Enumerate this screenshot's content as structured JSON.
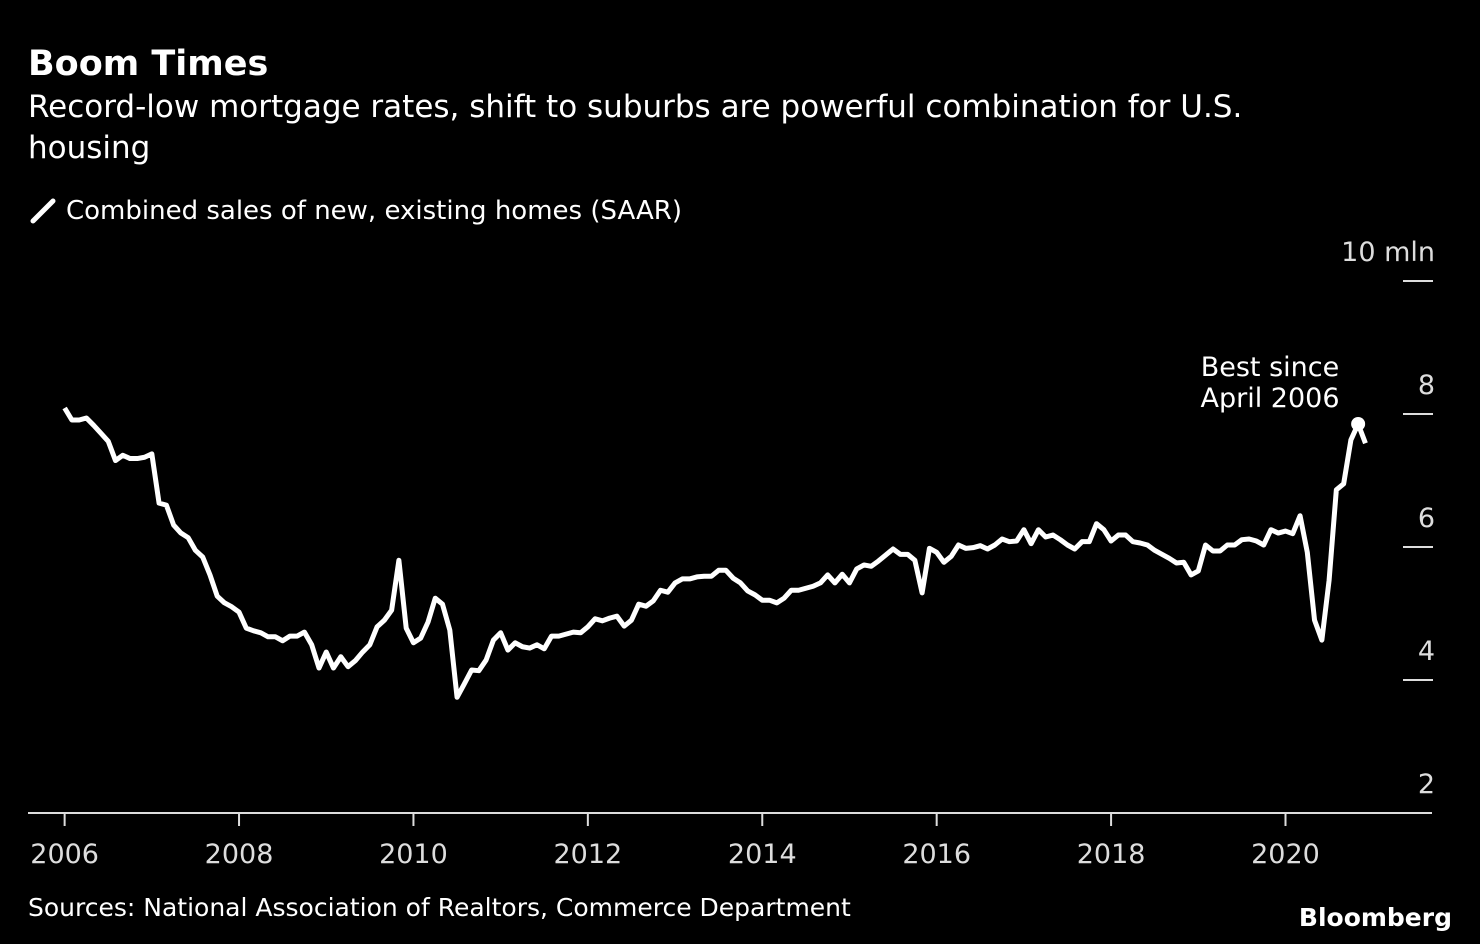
{
  "chart_data": {
    "type": "line",
    "title": "Boom Times",
    "subtitle": [
      "Record-low mortgage rates, shift to suburbs are powerful combination for U.S.",
      "housing"
    ],
    "source": "Sources: National Association of Realtors, Commerce Department",
    "brand": "Bloomberg",
    "annotation": [
      "Best since",
      "April 2006"
    ],
    "legend": true,
    "x": [
      2006,
      2006.083,
      2006.167,
      2006.25,
      2006.333,
      2006.417,
      2006.5,
      2006.583,
      2006.667,
      2006.75,
      2006.833,
      2006.917,
      2007,
      2007.083,
      2007.167,
      2007.25,
      2007.333,
      2007.417,
      2007.5,
      2007.583,
      2007.667,
      2007.75,
      2007.833,
      2007.917,
      2008,
      2008.083,
      2008.167,
      2008.25,
      2008.333,
      2008.417,
      2008.5,
      2008.583,
      2008.667,
      2008.75,
      2008.833,
      2008.917,
      2009,
      2009.083,
      2009.167,
      2009.25,
      2009.333,
      2009.417,
      2009.5,
      2009.583,
      2009.667,
      2009.75,
      2009.833,
      2009.917,
      2010,
      2010.083,
      2010.167,
      2010.25,
      2010.333,
      2010.417,
      2010.5,
      2010.583,
      2010.667,
      2010.75,
      2010.833,
      2010.917,
      2011,
      2011.083,
      2011.167,
      2011.25,
      2011.333,
      2011.417,
      2011.5,
      2011.583,
      2011.667,
      2011.75,
      2011.833,
      2011.917,
      2012,
      2012.083,
      2012.167,
      2012.25,
      2012.333,
      2012.417,
      2012.5,
      2012.583,
      2012.667,
      2012.75,
      2012.833,
      2012.917,
      2013,
      2013.083,
      2013.167,
      2013.25,
      2013.333,
      2013.417,
      2013.5,
      2013.583,
      2013.667,
      2013.75,
      2013.833,
      2013.917,
      2014,
      2014.083,
      2014.167,
      2014.25,
      2014.333,
      2014.417,
      2014.5,
      2014.583,
      2014.667,
      2014.75,
      2014.833,
      2014.917,
      2015,
      2015.083,
      2015.167,
      2015.25,
      2015.333,
      2015.417,
      2015.5,
      2015.583,
      2015.667,
      2015.75,
      2015.833,
      2015.917,
      2016,
      2016.083,
      2016.167,
      2016.25,
      2016.333,
      2016.417,
      2016.5,
      2016.583,
      2016.667,
      2016.75,
      2016.833,
      2016.917,
      2017,
      2017.083,
      2017.167,
      2017.25,
      2017.333,
      2017.417,
      2017.5,
      2017.583,
      2017.667,
      2017.75,
      2017.833,
      2017.917,
      2018,
      2018.083,
      2018.167,
      2018.25,
      2018.333,
      2018.417,
      2018.5,
      2018.583,
      2018.667,
      2018.75,
      2018.833,
      2018.917,
      2019,
      2019.083,
      2019.167,
      2019.25,
      2019.333,
      2019.417,
      2019.5,
      2019.583,
      2019.667,
      2019.75,
      2019.833,
      2019.917,
      2020,
      2020.083,
      2020.167,
      2020.25,
      2020.333,
      2020.417,
      2020.5,
      2020.583,
      2020.667,
      2020.75,
      2020.833,
      2020.917
    ],
    "series": [
      {
        "name": "Combined sales of new, existing homes (SAAR)",
        "color": "#ffffff",
        "values": [
          8.09,
          7.91,
          7.91,
          7.94,
          7.83,
          7.71,
          7.59,
          7.3,
          7.38,
          7.33,
          7.33,
          7.35,
          7.4,
          6.66,
          6.63,
          6.33,
          6.21,
          6.14,
          5.95,
          5.85,
          5.58,
          5.26,
          5.16,
          5.1,
          5.02,
          4.78,
          4.74,
          4.71,
          4.65,
          4.65,
          4.59,
          4.66,
          4.66,
          4.72,
          4.53,
          4.18,
          4.42,
          4.18,
          4.35,
          4.2,
          4.29,
          4.42,
          4.53,
          4.8,
          4.9,
          5.05,
          5.8,
          4.78,
          4.56,
          4.63,
          4.87,
          5.23,
          5.14,
          4.75,
          3.74,
          3.94,
          4.15,
          4.14,
          4.3,
          4.6,
          4.71,
          4.45,
          4.56,
          4.5,
          4.48,
          4.53,
          4.47,
          4.66,
          4.66,
          4.69,
          4.72,
          4.71,
          4.8,
          4.92,
          4.89,
          4.93,
          4.96,
          4.81,
          4.9,
          5.14,
          5.11,
          5.19,
          5.35,
          5.32,
          5.46,
          5.52,
          5.52,
          5.55,
          5.56,
          5.56,
          5.65,
          5.65,
          5.53,
          5.46,
          5.34,
          5.28,
          5.2,
          5.2,
          5.16,
          5.23,
          5.35,
          5.35,
          5.38,
          5.41,
          5.46,
          5.58,
          5.46,
          5.59,
          5.46,
          5.67,
          5.73,
          5.71,
          5.79,
          5.88,
          5.97,
          5.89,
          5.89,
          5.8,
          5.31,
          5.98,
          5.92,
          5.77,
          5.86,
          6.03,
          5.98,
          5.99,
          6.02,
          5.97,
          6.03,
          6.12,
          6.08,
          6.09,
          6.26,
          6.05,
          6.26,
          6.15,
          6.18,
          6.11,
          6.03,
          5.97,
          6.08,
          6.08,
          6.35,
          6.26,
          6.09,
          6.18,
          6.18,
          6.08,
          6.06,
          6.03,
          5.95,
          5.89,
          5.83,
          5.76,
          5.77,
          5.58,
          5.64,
          6.03,
          5.94,
          5.94,
          6.03,
          6.03,
          6.11,
          6.12,
          6.09,
          6.03,
          6.26,
          6.21,
          6.24,
          6.2,
          6.47,
          5.92,
          4.9,
          4.6,
          5.5,
          6.86,
          6.95,
          7.61,
          7.85,
          7.56
        ]
      }
    ],
    "xlim": [
      2005.58,
      2021.68
    ],
    "xticks": [
      2006,
      2008,
      2010,
      2012,
      2014,
      2016,
      2018,
      2020
    ],
    "ylim": [
      2,
      10
    ],
    "yticks": [
      2,
      4,
      6,
      8,
      {
        "value": 10,
        "label": "10 mln"
      }
    ]
  }
}
